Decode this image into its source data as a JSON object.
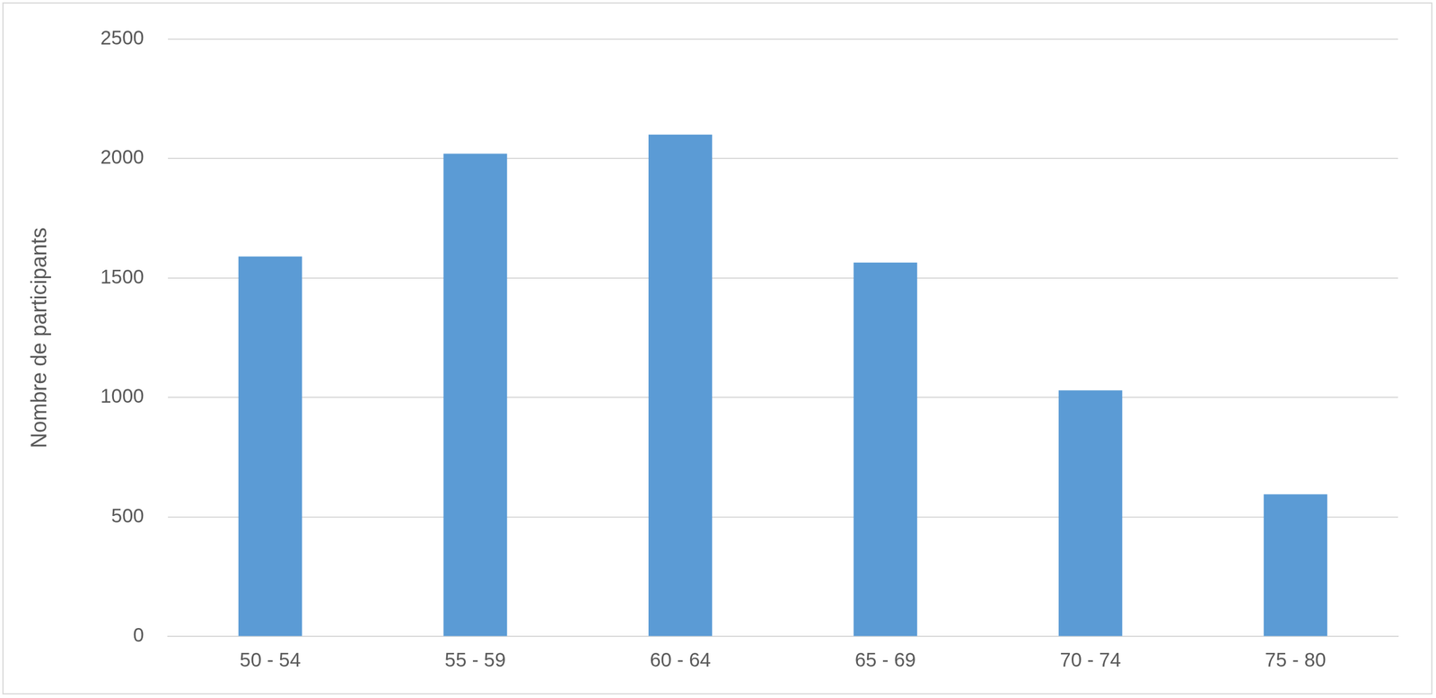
{
  "chart_data": {
    "type": "bar",
    "y_label": "Nombre de participants",
    "categories": [
      "50 - 54",
      "55 - 59",
      "60 - 64",
      "65 - 69",
      "70 - 74",
      "75 - 80"
    ],
    "values": [
      1590,
      2020,
      2100,
      1565,
      1030,
      595
    ],
    "color": "#5b9bd5",
    "ylim": [
      0,
      2500
    ],
    "yticks": [
      0,
      500,
      1000,
      1500,
      2000,
      2500
    ],
    "grid": true
  }
}
